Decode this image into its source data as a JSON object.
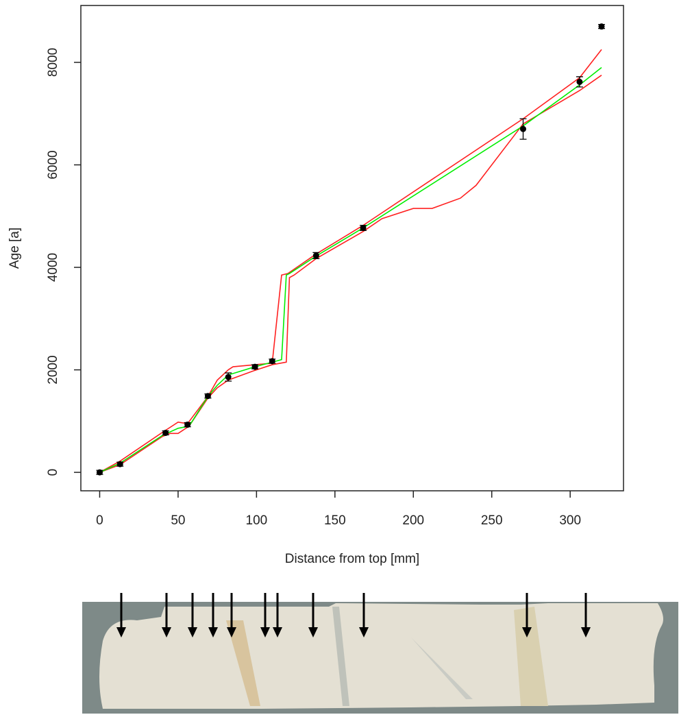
{
  "chart_data": {
    "type": "line",
    "xlabel": "Distance from top [mm]",
    "ylabel": "Age [a]",
    "xlim": [
      -12,
      334
    ],
    "ylim": [
      -360,
      9110
    ],
    "xticks": [
      0,
      50,
      100,
      150,
      200,
      250,
      300
    ],
    "yticks": [
      0,
      2000,
      4000,
      6000,
      8000
    ],
    "series": [
      {
        "color": "#ff2020",
        "x": [
          0,
          13,
          40,
          50,
          56,
          69,
          75,
          82,
          85,
          99,
          110,
          116,
          120,
          138,
          168,
          270,
          306,
          320
        ],
        "values": [
          0,
          220,
          780,
          980,
          950,
          1480,
          1800,
          2000,
          2060,
          2100,
          2130,
          3850,
          3880,
          4260,
          4820,
          6900,
          7700,
          8250
        ]
      },
      {
        "color": "#ff2020",
        "x": [
          0,
          13,
          40,
          45,
          50,
          57,
          69,
          75,
          82,
          99,
          110,
          119,
          121,
          124,
          138,
          168,
          180,
          200,
          212,
          230,
          240,
          270,
          306,
          320
        ],
        "values": [
          0,
          150,
          700,
          760,
          760,
          900,
          1450,
          1650,
          1800,
          1990,
          2100,
          2150,
          3800,
          3850,
          4170,
          4700,
          4950,
          5150,
          5150,
          5350,
          5600,
          6800,
          7450,
          7750
        ]
      },
      {
        "color": "#00ee00",
        "x": [
          0,
          13,
          40,
          50,
          57,
          69,
          75,
          82,
          99,
          110,
          116,
          119,
          121,
          138,
          168,
          270,
          306,
          320
        ],
        "values": [
          0,
          180,
          720,
          860,
          900,
          1480,
          1700,
          1900,
          2060,
          2150,
          2200,
          3850,
          3880,
          4220,
          4770,
          6760,
          7560,
          7900
        ]
      }
    ],
    "points": {
      "color": "#000000",
      "x": [
        0,
        13,
        42,
        56,
        69,
        82,
        99,
        110,
        138,
        168,
        270,
        306,
        320
      ],
      "values": [
        0,
        160,
        770,
        930,
        1490,
        1860,
        2060,
        2170,
        4230,
        4770,
        6700,
        7620,
        8700
      ],
      "errors": [
        40,
        40,
        40,
        40,
        40,
        80,
        40,
        40,
        60,
        50,
        200,
        100,
        40
      ]
    }
  }
}
